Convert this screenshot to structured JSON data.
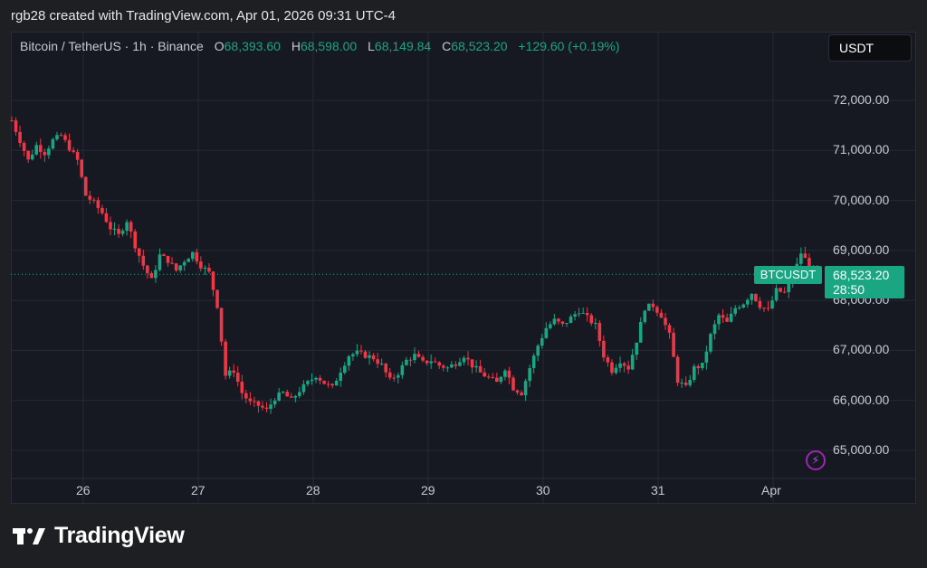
{
  "header": {
    "created_by": "rgb28 created with TradingView.com, Apr 01, 2026 09:31 UTC-4"
  },
  "legend": {
    "symbol": "Bitcoin / TetherUS · 1h · Binance",
    "o_label": "O",
    "o_value": "68,393.60",
    "h_label": "H",
    "h_value": "68,598.00",
    "l_label": "L",
    "l_value": "68,149.84",
    "c_label": "C",
    "c_value": "68,523.20",
    "change": "+129.60 (+0.19%)"
  },
  "toolbar": {
    "unit_label": "USDT"
  },
  "price_tag": {
    "symbol": "BTCUSDT",
    "price": "68,523.20",
    "countdown": "28:50"
  },
  "brand": {
    "name": "TradingView"
  },
  "colors": {
    "up": "#1aa682",
    "down": "#f23645",
    "background": "#161822",
    "grid": "#262936",
    "accent": "#9c27b0"
  },
  "icons": {
    "logo": "tradingview-logo-icon",
    "alert": "lightning-bolt-icon"
  },
  "chart_data": {
    "type": "candlestick",
    "interval": "1h",
    "y_axis": {
      "ticks": [
        72000,
        71000,
        70000,
        69000,
        68000,
        67000,
        66000,
        65000
      ],
      "tick_labels": [
        "72,000.00",
        "71,000.00",
        "70,000.00",
        "69,000.00",
        "68,000.00",
        "67,000.00",
        "66,000.00",
        "65,000.00"
      ],
      "range": [
        64300,
        73400
      ]
    },
    "x_axis": {
      "tick_labels": [
        "26",
        "27",
        "28",
        "29",
        "30",
        "31",
        "Apr"
      ]
    },
    "last_price": 68523.2,
    "grid": true,
    "path_points": [
      [
        0,
        71600
      ],
      [
        2,
        71200
      ],
      [
        4,
        70800
      ],
      [
        6,
        71100
      ],
      [
        8,
        70950
      ],
      [
        10,
        71200
      ],
      [
        12,
        71300
      ],
      [
        14,
        71050
      ],
      [
        16,
        70800
      ],
      [
        18,
        70100
      ],
      [
        20,
        69950
      ],
      [
        22,
        69750
      ],
      [
        24,
        69450
      ],
      [
        26,
        69300
      ],
      [
        28,
        69600
      ],
      [
        30,
        69100
      ],
      [
        32,
        68700
      ],
      [
        34,
        68400
      ],
      [
        36,
        68900
      ],
      [
        38,
        68800
      ],
      [
        40,
        68600
      ],
      [
        42,
        68800
      ],
      [
        44,
        68950
      ],
      [
        46,
        68700
      ],
      [
        48,
        68550
      ],
      [
        50,
        67900
      ],
      [
        52,
        66500
      ],
      [
        54,
        66600
      ],
      [
        56,
        66150
      ],
      [
        58,
        65950
      ],
      [
        60,
        65900
      ],
      [
        62,
        65800
      ],
      [
        64,
        66050
      ],
      [
        66,
        66150
      ],
      [
        68,
        66000
      ],
      [
        70,
        66200
      ],
      [
        72,
        66350
      ],
      [
        74,
        66500
      ],
      [
        76,
        66350
      ],
      [
        78,
        66250
      ],
      [
        80,
        66600
      ],
      [
        82,
        66900
      ],
      [
        84,
        66950
      ],
      [
        86,
        66900
      ],
      [
        88,
        66850
      ],
      [
        90,
        66700
      ],
      [
        92,
        66400
      ],
      [
        94,
        66550
      ],
      [
        96,
        66800
      ],
      [
        98,
        66900
      ],
      [
        100,
        66750
      ],
      [
        102,
        66800
      ],
      [
        104,
        66700
      ],
      [
        106,
        66650
      ],
      [
        108,
        66750
      ],
      [
        110,
        66900
      ],
      [
        112,
        66700
      ],
      [
        114,
        66550
      ],
      [
        116,
        66450
      ],
      [
        118,
        66350
      ],
      [
        120,
        66650
      ],
      [
        122,
        66250
      ],
      [
        124,
        66150
      ],
      [
        126,
        66650
      ],
      [
        128,
        67100
      ],
      [
        130,
        67450
      ],
      [
        132,
        67600
      ],
      [
        134,
        67500
      ],
      [
        136,
        67650
      ],
      [
        138,
        67800
      ],
      [
        140,
        67650
      ],
      [
        142,
        67500
      ],
      [
        144,
        66900
      ],
      [
        146,
        66600
      ],
      [
        148,
        66800
      ],
      [
        150,
        66650
      ],
      [
        152,
        67200
      ],
      [
        154,
        67850
      ],
      [
        156,
        67900
      ],
      [
        158,
        67700
      ],
      [
        160,
        67300
      ],
      [
        162,
        66400
      ],
      [
        164,
        66250
      ],
      [
        166,
        66650
      ],
      [
        168,
        66700
      ],
      [
        170,
        67300
      ],
      [
        172,
        67700
      ],
      [
        174,
        67550
      ],
      [
        176,
        67850
      ],
      [
        178,
        67950
      ],
      [
        180,
        68150
      ],
      [
        182,
        67900
      ],
      [
        184,
        67800
      ],
      [
        186,
        68200
      ],
      [
        188,
        68150
      ],
      [
        190,
        68450
      ],
      [
        192,
        68950
      ],
      [
        194,
        68700
      ],
      [
        196,
        68523
      ]
    ]
  }
}
